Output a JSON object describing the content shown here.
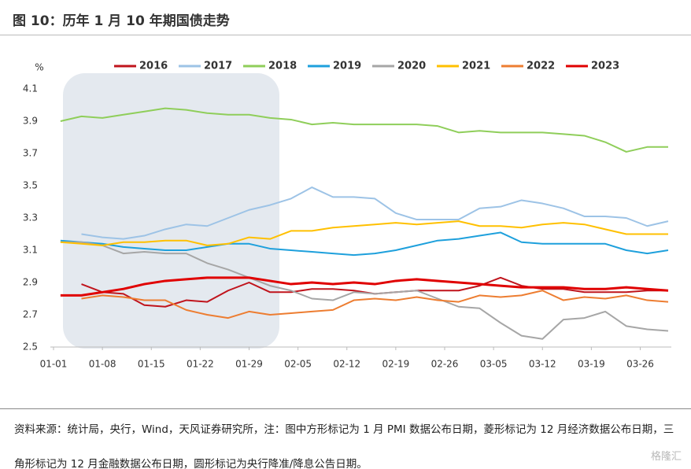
{
  "chart_data": {
    "type": "line",
    "title": "图 10：历年 1 月 10 年期国债走势",
    "y_unit": "%",
    "footnote": "资料来源：统计局，央行，Wind，天风证券研究所，注：图中方形标记为 1 月 PMI 数据公布日期，菱形标记为 12 月经济数据公布日期，三角形标记为 12 月金融数据公布日期，圆形标记为央行降准/降息公告日期。",
    "watermark": "格隆汇",
    "x": [
      1,
      4,
      7,
      10,
      13,
      16,
      19,
      22,
      25,
      28,
      31,
      34,
      37,
      40,
      43,
      46,
      49,
      52,
      55,
      58,
      61,
      64,
      67,
      70,
      73,
      76,
      79,
      82,
      85,
      88
    ],
    "xlim": [
      0,
      88
    ],
    "xticks": [
      {
        "value": 0,
        "label": "01-01"
      },
      {
        "value": 7,
        "label": "01-08"
      },
      {
        "value": 14,
        "label": "01-15"
      },
      {
        "value": 21,
        "label": "01-22"
      },
      {
        "value": 28,
        "label": "01-29"
      },
      {
        "value": 35,
        "label": "02-05"
      },
      {
        "value": 42,
        "label": "02-12"
      },
      {
        "value": 49,
        "label": "02-19"
      },
      {
        "value": 56,
        "label": "02-26"
      },
      {
        "value": 63,
        "label": "03-05"
      },
      {
        "value": 70,
        "label": "03-12"
      },
      {
        "value": 77,
        "label": "03-19"
      },
      {
        "value": 84,
        "label": "03-26"
      }
    ],
    "ylim": [
      2.5,
      4.1
    ],
    "yticks": [
      2.5,
      2.7,
      2.9,
      3.1,
      3.3,
      3.5,
      3.7,
      3.9,
      4.1
    ],
    "series": [
      {
        "name": "2016",
        "color": "#c0141c",
        "width": 2,
        "values": [
          null,
          2.89,
          2.84,
          2.83,
          2.76,
          2.75,
          2.79,
          2.78,
          2.85,
          2.9,
          2.84,
          2.84,
          2.86,
          2.86,
          2.85,
          2.83,
          2.84,
          2.85,
          2.85,
          2.85,
          2.88,
          2.93,
          2.88,
          2.86,
          2.86,
          2.84,
          2.84,
          2.84,
          2.85,
          2.85
        ]
      },
      {
        "name": "2017",
        "color": "#9dc3e6",
        "width": 2,
        "values": [
          null,
          3.2,
          3.18,
          3.17,
          3.19,
          3.23,
          3.26,
          3.25,
          3.3,
          3.35,
          3.38,
          3.42,
          3.49,
          3.43,
          3.43,
          3.42,
          3.33,
          3.29,
          3.29,
          3.29,
          3.36,
          3.37,
          3.41,
          3.39,
          3.36,
          3.31,
          3.31,
          3.3,
          3.25,
          3.28
        ]
      },
      {
        "name": "2018",
        "color": "#8fce5a",
        "width": 2,
        "values": [
          3.9,
          3.93,
          3.92,
          3.94,
          3.96,
          3.98,
          3.97,
          3.95,
          3.94,
          3.94,
          3.92,
          3.91,
          3.88,
          3.89,
          3.88,
          3.88,
          3.88,
          3.88,
          3.87,
          3.83,
          3.84,
          3.83,
          3.83,
          3.83,
          3.82,
          3.81,
          3.77,
          3.71,
          3.74,
          3.74
        ]
      },
      {
        "name": "2019",
        "color": "#1ea0dc",
        "width": 2,
        "values": [
          3.16,
          3.15,
          3.14,
          3.12,
          3.11,
          3.1,
          3.1,
          3.12,
          3.14,
          3.14,
          3.11,
          3.1,
          3.09,
          3.08,
          3.07,
          3.08,
          3.1,
          3.13,
          3.16,
          3.17,
          3.19,
          3.21,
          3.15,
          3.14,
          3.14,
          3.14,
          3.14,
          3.1,
          3.08,
          3.1
        ]
      },
      {
        "name": "2020",
        "color": "#a6a6a6",
        "width": 2,
        "values": [
          3.15,
          3.15,
          3.13,
          3.08,
          3.09,
          3.08,
          3.08,
          3.02,
          2.98,
          2.93,
          2.88,
          2.85,
          2.8,
          2.79,
          2.84,
          2.83,
          2.84,
          2.85,
          2.8,
          2.75,
          2.74,
          2.65,
          2.57,
          2.55,
          2.67,
          2.68,
          2.72,
          2.63,
          2.61,
          2.6
        ]
      },
      {
        "name": "2021",
        "color": "#ffc000",
        "width": 2,
        "values": [
          3.15,
          3.14,
          3.13,
          3.15,
          3.15,
          3.16,
          3.16,
          3.13,
          3.14,
          3.18,
          3.17,
          3.22,
          3.22,
          3.24,
          3.25,
          3.26,
          3.27,
          3.26,
          3.27,
          3.28,
          3.25,
          3.25,
          3.24,
          3.26,
          3.27,
          3.26,
          3.23,
          3.2,
          3.2,
          3.2
        ]
      },
      {
        "name": "2022",
        "color": "#ed7d31",
        "width": 2,
        "values": [
          null,
          2.8,
          2.82,
          2.81,
          2.79,
          2.79,
          2.73,
          2.7,
          2.68,
          2.72,
          2.7,
          2.71,
          2.72,
          2.73,
          2.79,
          2.8,
          2.79,
          2.81,
          2.79,
          2.78,
          2.82,
          2.81,
          2.82,
          2.85,
          2.79,
          2.81,
          2.8,
          2.82,
          2.79,
          2.78
        ]
      },
      {
        "name": "2023",
        "color": "#e00000",
        "width": 3,
        "values": [
          2.82,
          2.82,
          2.84,
          2.86,
          2.89,
          2.91,
          2.92,
          2.93,
          2.93,
          2.93,
          2.91,
          2.89,
          2.9,
          2.89,
          2.9,
          2.89,
          2.91,
          2.92,
          2.91,
          2.9,
          2.89,
          2.88,
          2.87,
          2.87,
          2.87,
          2.86,
          2.86,
          2.87,
          2.86,
          2.85
        ]
      }
    ]
  }
}
